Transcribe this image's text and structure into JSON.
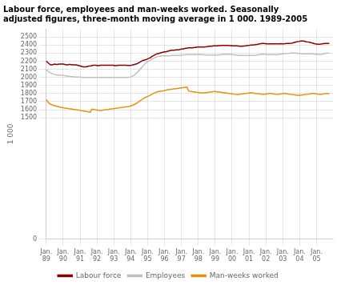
{
  "chart_data": {
    "type": "line",
    "title": "Labour force, employees and man-weeks worked. Seasonally\nadjusted figures, three-month moving average in 1 000. 1989-2005",
    "ylabel": "1 000",
    "x": [
      1989,
      1989.0842,
      1989.1683,
      1989.2525,
      1989.3367,
      1989.4209,
      1989.505,
      1989.5892,
      1989.6734,
      1989.7575,
      1989.8417,
      1989.9259,
      1990.0101,
      1990.0942,
      1990.1784,
      1990.2626,
      1990.3467,
      1990.4309,
      1990.5151,
      1990.5992,
      1990.6834,
      1990.7676,
      1990.8518,
      1990.9359,
      1991.0201,
      1991.1043,
      1991.1884,
      1991.2726,
      1991.3568,
      1991.441,
      1991.5251,
      1991.6093,
      1991.6935,
      1991.7776,
      1991.8618,
      1991.946,
      1992.0302,
      1992.1143,
      1992.1985,
      1992.2827,
      1992.3668,
      1992.451,
      1992.5352,
      1992.6193,
      1992.7035,
      1992.7877,
      1992.8719,
      1992.956,
      1993.0402,
      1993.1244,
      1993.2085,
      1993.2927,
      1993.3769,
      1993.4611,
      1993.5452,
      1993.6294,
      1993.7136,
      1993.7977,
      1993.8819,
      1993.9661,
      1994.0503,
      1994.1344,
      1994.2186,
      1994.3028,
      1994.3869,
      1994.4711,
      1994.5553,
      1994.6394,
      1994.7236,
      1994.8078,
      1994.892,
      1994.9761,
      1995.0603,
      1995.1445,
      1995.2286,
      1995.3128,
      1995.397,
      1995.4812,
      1995.5653,
      1995.6495,
      1995.7337,
      1995.8178,
      1995.902,
      1995.9862,
      1996.0704,
      1996.1545,
      1996.2387,
      1996.3229,
      1996.407,
      1996.4912,
      1996.5754,
      1996.6595,
      1996.7437,
      1996.8279,
      1996.9121,
      1996.9962,
      1997.0804,
      1997.1646,
      1997.2487,
      1997.3329,
      1997.4171,
      1997.5013,
      1997.5854,
      1997.6696,
      1997.7538,
      1997.8379,
      1997.9221,
      1998.0063,
      1998.0905,
      1998.1746,
      1998.2588,
      1998.343,
      1998.4271,
      1998.5113,
      1998.5955,
      1998.6796,
      1998.7638,
      1998.848,
      1998.9322,
      1999.0163,
      1999.1005,
      1999.1847,
      1999.2688,
      1999.353,
      1999.4372,
      1999.5214,
      1999.6055,
      1999.6897,
      1999.7739,
      1999.858,
      1999.9422,
      2000.0264,
      2000.1106,
      2000.1947,
      2000.2789,
      2000.3631,
      2000.4472,
      2000.5314,
      2000.6156,
      2000.6997,
      2000.7839,
      2000.8681,
      2000.9523,
      2001.0364,
      2001.1206,
      2001.2048,
      2001.2889,
      2001.3731,
      2001.4573,
      2001.5415,
      2001.6256,
      2001.7098,
      2001.794,
      2001.8781,
      2001.9623,
      2002.0465,
      2002.1307,
      2002.2148,
      2002.299,
      2002.3832,
      2002.4673,
      2002.5515,
      2002.6357,
      2002.7198,
      2002.804,
      2002.8882,
      2002.9724,
      2003.0565,
      2003.1407,
      2003.2249,
      2003.309,
      2003.3932,
      2003.4774,
      2003.5616,
      2003.6457,
      2003.7299,
      2003.8141,
      2003.8982,
      2003.9824,
      2004.0666,
      2004.1508,
      2004.2349,
      2004.3191,
      2004.4033,
      2004.4874,
      2004.5716,
      2004.6558,
      2004.7399,
      2004.8241,
      2004.9083,
      2004.9925,
      2005.0766,
      2005.1608,
      2005.245,
      2005.3291,
      2005.4133,
      2005.4975,
      2005.5817,
      2005.6658,
      2005.75
    ],
    "series": [
      {
        "name": "Labour force",
        "color": "#8b0000",
        "values": [
          2200,
          2185,
          2170,
          2155,
          2155,
          2160,
          2165,
          2160,
          2160,
          2165,
          2165,
          2165,
          2165,
          2160,
          2155,
          2155,
          2160,
          2160,
          2155,
          2155,
          2155,
          2155,
          2150,
          2145,
          2140,
          2135,
          2130,
          2130,
          2130,
          2135,
          2140,
          2140,
          2145,
          2150,
          2150,
          2150,
          2145,
          2145,
          2150,
          2150,
          2150,
          2150,
          2150,
          2150,
          2150,
          2150,
          2150,
          2150,
          2145,
          2145,
          2148,
          2150,
          2150,
          2150,
          2150,
          2150,
          2150,
          2148,
          2148,
          2148,
          2150,
          2155,
          2160,
          2165,
          2170,
          2180,
          2190,
          2200,
          2210,
          2215,
          2220,
          2225,
          2235,
          2240,
          2255,
          2265,
          2275,
          2285,
          2290,
          2295,
          2300,
          2305,
          2310,
          2315,
          2315,
          2320,
          2325,
          2330,
          2335,
          2335,
          2335,
          2340,
          2340,
          2340,
          2345,
          2350,
          2350,
          2355,
          2360,
          2360,
          2365,
          2365,
          2365,
          2365,
          2370,
          2370,
          2375,
          2375,
          2375,
          2375,
          2375,
          2375,
          2378,
          2380,
          2383,
          2385,
          2385,
          2388,
          2390,
          2390,
          2390,
          2393,
          2393,
          2395,
          2395,
          2395,
          2395,
          2395,
          2395,
          2393,
          2393,
          2390,
          2390,
          2390,
          2390,
          2388,
          2385,
          2385,
          2385,
          2388,
          2390,
          2393,
          2395,
          2397,
          2400,
          2400,
          2403,
          2405,
          2408,
          2410,
          2415,
          2418,
          2420,
          2420,
          2418,
          2415,
          2415,
          2415,
          2415,
          2415,
          2415,
          2415,
          2415,
          2415,
          2415,
          2418,
          2415,
          2415,
          2418,
          2420,
          2420,
          2420,
          2422,
          2425,
          2430,
          2435,
          2440,
          2443,
          2445,
          2448,
          2450,
          2448,
          2445,
          2440,
          2438,
          2435,
          2430,
          2425,
          2420,
          2415,
          2413,
          2410,
          2410,
          2412,
          2415,
          2418,
          2420,
          2420,
          2420,
          2420
        ]
      },
      {
        "name": "Employees",
        "color": "#c0c0c0",
        "values": [
          2095,
          2080,
          2065,
          2055,
          2048,
          2040,
          2035,
          2030,
          2030,
          2028,
          2025,
          2025,
          2025,
          2020,
          2018,
          2015,
          2015,
          2010,
          2010,
          2008,
          2005,
          2005,
          2005,
          2005,
          2003,
          2000,
          2000,
          2000,
          2000,
          2000,
          2000,
          2000,
          2000,
          2000,
          2000,
          2000,
          2000,
          2000,
          2000,
          2000,
          2000,
          2000,
          2000,
          2000,
          2000,
          2000,
          2000,
          2000,
          2000,
          2000,
          2000,
          2000,
          2000,
          2000,
          2000,
          2000,
          2000,
          2000,
          2002,
          2005,
          2010,
          2020,
          2030,
          2045,
          2060,
          2080,
          2100,
          2120,
          2140,
          2160,
          2175,
          2190,
          2200,
          2210,
          2220,
          2230,
          2240,
          2248,
          2255,
          2260,
          2262,
          2265,
          2265,
          2265,
          2265,
          2265,
          2267,
          2268,
          2270,
          2270,
          2270,
          2270,
          2270,
          2270,
          2272,
          2275,
          2275,
          2278,
          2280,
          2280,
          2280,
          2280,
          2280,
          2280,
          2280,
          2280,
          2280,
          2280,
          2280,
          2280,
          2280,
          2278,
          2276,
          2275,
          2275,
          2275,
          2275,
          2275,
          2275,
          2275,
          2275,
          2275,
          2278,
          2280,
          2282,
          2285,
          2285,
          2285,
          2285,
          2283,
          2280,
          2280,
          2278,
          2276,
          2274,
          2272,
          2270,
          2270,
          2270,
          2270,
          2270,
          2270,
          2270,
          2270,
          2270,
          2270,
          2270,
          2272,
          2275,
          2278,
          2280,
          2283,
          2285,
          2285,
          2283,
          2280,
          2280,
          2280,
          2280,
          2280,
          2280,
          2280,
          2280,
          2282,
          2285,
          2288,
          2290,
          2292,
          2293,
          2295,
          2296,
          2298,
          2300,
          2300,
          2300,
          2300,
          2298,
          2296,
          2295,
          2293,
          2292,
          2291,
          2290,
          2290,
          2290,
          2290,
          2290,
          2290,
          2288,
          2286,
          2285,
          2284,
          2283,
          2284,
          2285,
          2290,
          2295,
          2298,
          2300,
          2302
        ]
      },
      {
        "name": "Man-weeks worked",
        "color": "#e8920c",
        "values": [
          1725,
          1700,
          1680,
          1668,
          1660,
          1655,
          1650,
          1645,
          1640,
          1635,
          1630,
          1628,
          1625,
          1620,
          1618,
          1615,
          1612,
          1610,
          1608,
          1605,
          1603,
          1600,
          1598,
          1595,
          1590,
          1588,
          1585,
          1582,
          1580,
          1575,
          1572,
          1570,
          1608,
          1605,
          1600,
          1598,
          1595,
          1592,
          1590,
          1592,
          1595,
          1598,
          1600,
          1602,
          1605,
          1608,
          1610,
          1612,
          1615,
          1618,
          1620,
          1622,
          1625,
          1628,
          1630,
          1633,
          1635,
          1638,
          1640,
          1645,
          1650,
          1658,
          1665,
          1675,
          1685,
          1698,
          1710,
          1722,
          1735,
          1745,
          1755,
          1762,
          1770,
          1778,
          1788,
          1798,
          1808,
          1815,
          1820,
          1825,
          1828,
          1830,
          1832,
          1835,
          1840,
          1845,
          1848,
          1850,
          1852,
          1855,
          1858,
          1860,
          1862,
          1865,
          1868,
          1870,
          1872,
          1875,
          1878,
          1880,
          1832,
          1828,
          1825,
          1822,
          1820,
          1818,
          1815,
          1813,
          1810,
          1808,
          1808,
          1808,
          1810,
          1812,
          1815,
          1818,
          1820,
          1822,
          1825,
          1825,
          1822,
          1820,
          1818,
          1815,
          1812,
          1810,
          1808,
          1805,
          1803,
          1800,
          1798,
          1795,
          1792,
          1790,
          1788,
          1788,
          1790,
          1793,
          1795,
          1798,
          1800,
          1803,
          1805,
          1808,
          1810,
          1808,
          1805,
          1802,
          1800,
          1798,
          1795,
          1793,
          1790,
          1790,
          1792,
          1795,
          1798,
          1800,
          1800,
          1798,
          1795,
          1792,
          1790,
          1790,
          1792,
          1795,
          1798,
          1800,
          1800,
          1798,
          1795,
          1792,
          1790,
          1788,
          1785,
          1783,
          1780,
          1778,
          1778,
          1780,
          1783,
          1785,
          1788,
          1790,
          1792,
          1795,
          1798,
          1800,
          1800,
          1798,
          1795,
          1792,
          1790,
          1790,
          1792,
          1795,
          1798,
          1800,
          1800,
          1795
        ]
      }
    ],
    "xlim": [
      1988.97,
      2005.97
    ],
    "xticks": [
      {
        "value": 1989,
        "label": "Jan.\n89"
      },
      {
        "value": 1990,
        "label": "Jan.\n90"
      },
      {
        "value": 1991,
        "label": "Jan.\n91"
      },
      {
        "value": 1992,
        "label": "Jan.\n92"
      },
      {
        "value": 1993,
        "label": "Jan.\n93"
      },
      {
        "value": 1994,
        "label": "Jan.\n94"
      },
      {
        "value": 1995,
        "label": "Jan.\n95"
      },
      {
        "value": 1996,
        "label": "Jan.\n96"
      },
      {
        "value": 1997,
        "label": "Jan.\n97"
      },
      {
        "value": 1998,
        "label": "Jan.\n98"
      },
      {
        "value": 1999,
        "label": "Jan.\n99"
      },
      {
        "value": 2000,
        "label": "Jan.\n00"
      },
      {
        "value": 2001,
        "label": "Jan.\n01"
      },
      {
        "value": 2002,
        "label": "Jan.\n02"
      },
      {
        "value": 2003,
        "label": "Jan.\n03"
      },
      {
        "value": 2004,
        "label": "Jan.\n04"
      },
      {
        "value": 2005,
        "label": "Jan.\n05"
      }
    ],
    "ylim": [
      0,
      2600
    ],
    "yticks": [
      0,
      1500,
      1600,
      1700,
      1800,
      1900,
      2000,
      2100,
      2200,
      2300,
      2400,
      2500
    ],
    "grid": true,
    "legend": "bottom"
  }
}
